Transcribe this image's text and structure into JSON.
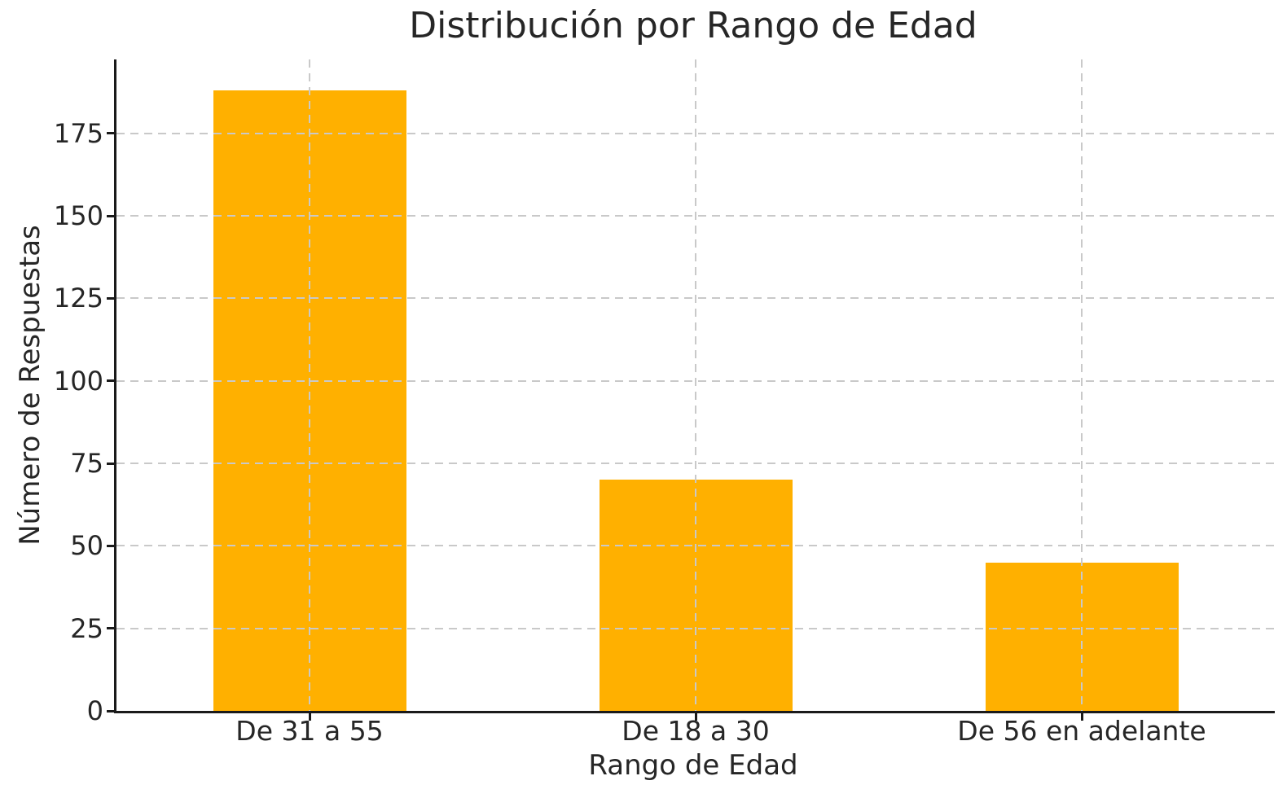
{
  "figure": {
    "background": "#ffffff"
  },
  "chart_data": {
    "type": "bar",
    "title": "Distribución por Rango de Edad",
    "xlabel": "Rango de Edad",
    "ylabel": "Número de Respuestas",
    "categories": [
      "De 31 a 55",
      "De 18 a 30",
      "De 56 en adelante"
    ],
    "values": [
      188,
      70,
      45
    ],
    "yticks": [
      0,
      25,
      50,
      75,
      100,
      125,
      150,
      175
    ],
    "ylim": [
      0,
      197.4
    ],
    "grid": true,
    "grid_style": "dashed",
    "grid_above_bars": true,
    "legend_position": "none",
    "colors": {
      "bar": "#ffb000",
      "grid": "#c9c9c9",
      "axis": "#1a1a1a",
      "text": "#262626"
    }
  }
}
